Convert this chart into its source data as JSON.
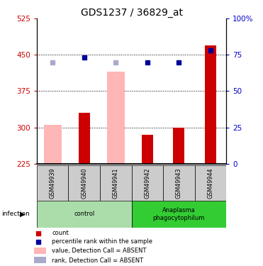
{
  "title": "GDS1237 / 36829_at",
  "samples": [
    "GSM49939",
    "GSM49940",
    "GSM49941",
    "GSM49942",
    "GSM49943",
    "GSM49944"
  ],
  "count_values": [
    225,
    330,
    225,
    285,
    300,
    470
  ],
  "count_absent": [
    true,
    false,
    true,
    false,
    false,
    false
  ],
  "pink_bar_values": [
    305,
    0,
    415,
    0,
    0,
    0
  ],
  "blue_rank_values": [
    null,
    73,
    null,
    70,
    70,
    78
  ],
  "light_blue_rank_values": [
    70,
    null,
    70,
    null,
    null,
    null
  ],
  "ylim_left": [
    225,
    525
  ],
  "ylim_right": [
    0,
    100
  ],
  "yticks_left": [
    225,
    300,
    375,
    450,
    525
  ],
  "yticks_right": [
    0,
    25,
    50,
    75,
    100
  ],
  "ytick_labels_right": [
    "0",
    "25",
    "50",
    "75",
    "100%"
  ],
  "hlines": [
    300,
    375,
    450
  ],
  "red_bar_color": "#CC0000",
  "pink_bar_color": "#FFB6B6",
  "blue_marker_color": "#000099",
  "light_blue_marker_color": "#AAAACC",
  "title_fontsize": 10,
  "tick_label_color_left": "#CC0000",
  "tick_label_color_right": "#0000CC",
  "background_label": "#CCCCCC",
  "control_color": "#AADDAA",
  "anaplasma_color": "#33CC33",
  "legend_items": [
    {
      "color": "#CC0000",
      "label": "count",
      "type": "square"
    },
    {
      "color": "#000099",
      "label": "percentile rank within the sample",
      "type": "square"
    },
    {
      "color": "#FFB6B6",
      "label": "value, Detection Call = ABSENT",
      "type": "rect"
    },
    {
      "color": "#AAAACC",
      "label": "rank, Detection Call = ABSENT",
      "type": "rect"
    }
  ]
}
